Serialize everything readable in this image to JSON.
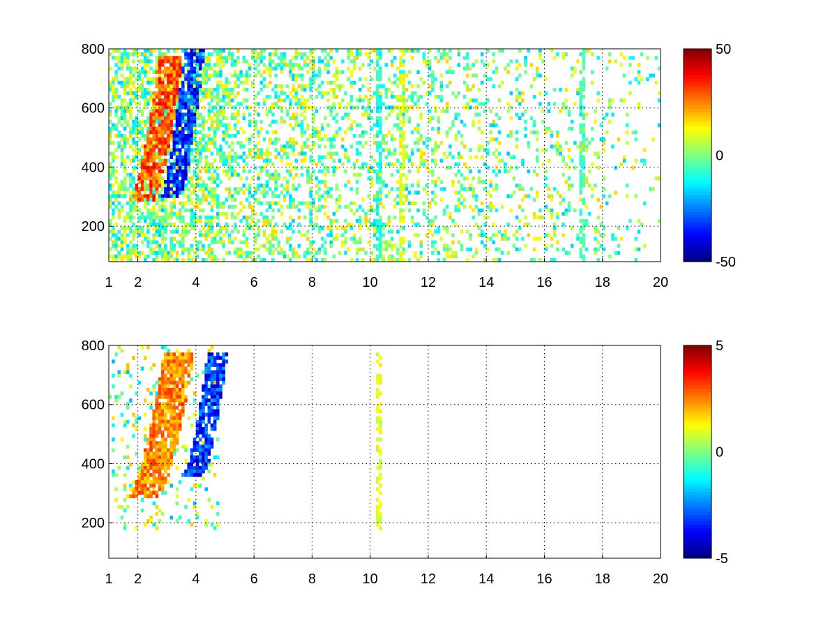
{
  "figure": {
    "background": "#ffffff"
  },
  "chart_data": [
    {
      "type": "heatmap",
      "title": "",
      "xlabel": "",
      "ylabel": "",
      "xlim": [
        1,
        20
      ],
      "ylim": [
        80,
        800
      ],
      "grid": true,
      "colormap": "jet",
      "x_tick_labels": [
        "1",
        "2",
        "4",
        "6",
        "8",
        "10",
        "12",
        "14",
        "16",
        "18",
        "20"
      ],
      "y_tick_labels": [
        "200",
        "400",
        "600",
        "800"
      ],
      "colorbar": {
        "min": -50,
        "max": 50,
        "tick_labels": [
          "50",
          "0",
          "-50"
        ]
      },
      "features": [
        {
          "description_key": "positive ridge",
          "x": [
            2.0,
            3.2
          ],
          "y": [
            280,
            780
          ],
          "value": 35
        },
        {
          "description_key": "negative ridge",
          "x": [
            3.0,
            4.0
          ],
          "y": [
            300,
            800
          ],
          "value": -40
        },
        {
          "description_key": "vertical band",
          "x": 10.3,
          "y": [
            80,
            800
          ],
          "value": -10
        },
        {
          "description_key": "vertical band",
          "x": 11.1,
          "y": [
            80,
            800
          ],
          "value": 10
        },
        {
          "description_key": "vertical band",
          "x": 17.3,
          "y": [
            80,
            800
          ],
          "value": -5
        }
      ]
    },
    {
      "type": "heatmap",
      "title": "",
      "xlabel": "",
      "ylabel": "",
      "xlim": [
        1,
        20
      ],
      "ylim": [
        80,
        800
      ],
      "grid": true,
      "colormap": "jet",
      "x_tick_labels": [
        "1",
        "2",
        "4",
        "6",
        "8",
        "10",
        "12",
        "14",
        "16",
        "18",
        "20"
      ],
      "y_tick_labels": [
        "200",
        "400",
        "600",
        "800"
      ],
      "colorbar": {
        "min": -5,
        "max": 5,
        "tick_labels": [
          "5",
          "0",
          "-5"
        ]
      },
      "features": [
        {
          "description_key": "positive ridge",
          "x": [
            2.0,
            3.5
          ],
          "y": [
            280,
            780
          ],
          "value": 3
        },
        {
          "description_key": "negative ridge",
          "x": [
            3.8,
            4.8
          ],
          "y": [
            360,
            780
          ],
          "value": -4
        },
        {
          "description_key": "vertical band",
          "x": 10.3,
          "y": [
            160,
            780
          ],
          "value": 1
        }
      ]
    }
  ]
}
